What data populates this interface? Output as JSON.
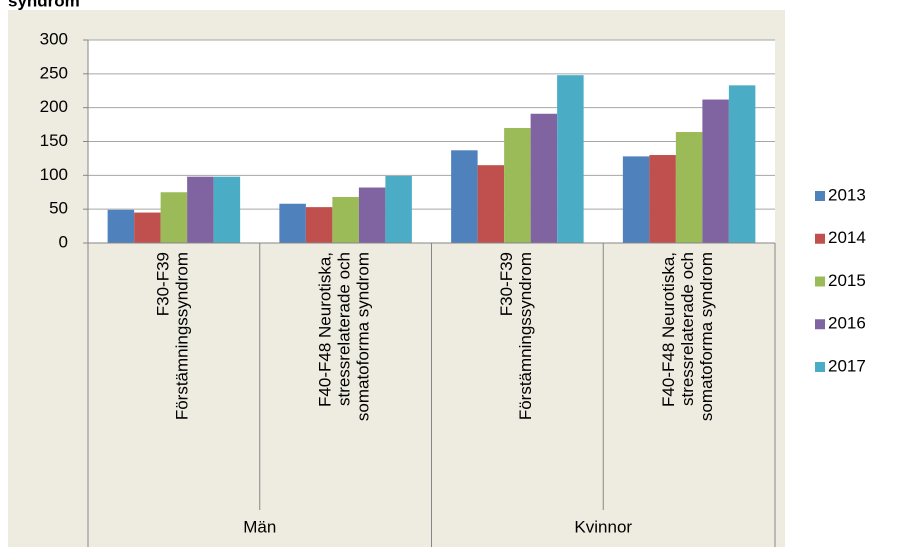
{
  "chart_data": {
    "type": "bar",
    "title": "syndrom",
    "categories": [
      [
        "F30-F39",
        "Förstämningssyndrom"
      ],
      [
        "F40-F48 Neurotiska,",
        "stressrelaterade och",
        "somatoforma syndrom"
      ],
      [
        "F30-F39",
        "Förstämningssyndrom"
      ],
      [
        "F40-F48 Neurotiska,",
        "stressrelaterade och",
        "somatoforma syndrom"
      ]
    ],
    "group_labels": [
      "Män",
      "Kvinnor"
    ],
    "series": [
      {
        "name": "2013",
        "color": "#4f81bd",
        "values": [
          49,
          58,
          137,
          128
        ]
      },
      {
        "name": "2014",
        "color": "#c0504d",
        "values": [
          45,
          53,
          115,
          130
        ]
      },
      {
        "name": "2015",
        "color": "#9bbb59",
        "values": [
          75,
          68,
          170,
          164
        ]
      },
      {
        "name": "2016",
        "color": "#8064a2",
        "values": [
          98,
          82,
          191,
          212
        ]
      },
      {
        "name": "2017",
        "color": "#4bacc6",
        "values": [
          98,
          99,
          248,
          233
        ]
      }
    ],
    "ylim": [
      0,
      300
    ],
    "yticks": [
      0,
      50,
      100,
      150,
      200,
      250,
      300
    ],
    "grid": true,
    "legend": "right"
  }
}
